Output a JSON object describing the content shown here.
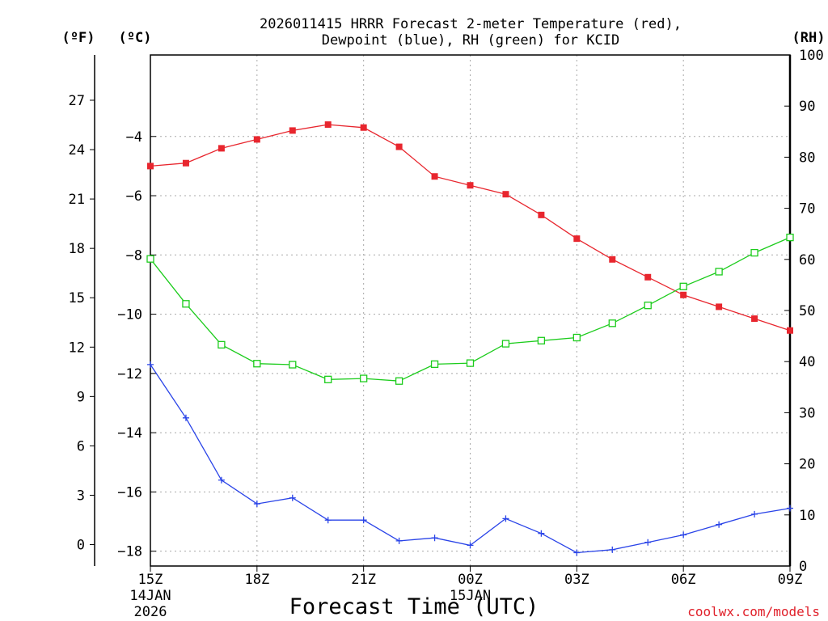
{
  "chart_data": {
    "type": "line",
    "title_line1": "2026011415 HRRR Forecast 2-meter Temperature (red),",
    "title_line2": "Dewpoint (blue), RH (green) for KCID",
    "unit_f": "(ºF)",
    "unit_c": "(ºC)",
    "unit_rh": "(RH)",
    "xlabel": "Forecast Time (UTC)",
    "credit": "coolwx.com/models",
    "celsius_axis": {
      "ylim": [
        -18.5,
        -1.25
      ],
      "ticks": [
        -4,
        -6,
        -8,
        -10,
        -12,
        -14,
        -16,
        -18
      ],
      "tick_labels": [
        "−4",
        "−6",
        "−8",
        "−10",
        "−12",
        "−14",
        "−16",
        "−18"
      ]
    },
    "fahrenheit_axis": {
      "ylim": [
        -1.3,
        29.75
      ],
      "ticks": [
        27,
        24,
        21,
        18,
        15,
        12,
        9,
        6,
        3,
        0
      ],
      "tick_labels": [
        "27",
        "24",
        "21",
        "18",
        "15",
        "12",
        "9",
        "6",
        "3",
        "0"
      ]
    },
    "rh_axis": {
      "ylim": [
        0,
        100
      ],
      "ticks": [
        100,
        90,
        80,
        70,
        60,
        50,
        40,
        30,
        20,
        10,
        0
      ],
      "tick_labels": [
        "100",
        "90",
        "80",
        "70",
        "60",
        "50",
        "40",
        "30",
        "20",
        "10",
        "0"
      ]
    },
    "x_ticks": [
      {
        "hour": 0,
        "label": "15Z",
        "date": "14JAN",
        "year": "2026"
      },
      {
        "hour": 3,
        "label": "18Z"
      },
      {
        "hour": 6,
        "label": "21Z"
      },
      {
        "hour": 9,
        "label": "00Z",
        "date": "15JAN"
      },
      {
        "hour": 12,
        "label": "03Z"
      },
      {
        "hour": 15,
        "label": "06Z"
      },
      {
        "hour": 18,
        "label": "09Z"
      }
    ],
    "x_hours": [
      0,
      1,
      2,
      3,
      4,
      5,
      6,
      7,
      8,
      9,
      10,
      11,
      12,
      13,
      14,
      15,
      16,
      17,
      18
    ],
    "series": [
      {
        "name": "2-meter Temperature",
        "axis": "celsius",
        "color": "#e8262e",
        "marker": "filled-square",
        "values": [
          -5.0,
          -4.9,
          -4.4,
          -4.1,
          -3.8,
          -3.6,
          -3.7,
          -4.35,
          -5.35,
          -5.65,
          -5.95,
          -6.65,
          -7.45,
          -8.15,
          -8.75,
          -9.35,
          -9.75,
          -10.15,
          -10.55
        ]
      },
      {
        "name": "Dewpoint",
        "axis": "celsius",
        "color": "#2a44e8",
        "marker": "plus",
        "values": [
          -11.7,
          -13.5,
          -15.6,
          -16.4,
          -16.2,
          -16.95,
          -16.95,
          -17.65,
          -17.55,
          -17.8,
          -16.9,
          -17.4,
          -18.05,
          -17.95,
          -17.7,
          -17.45,
          -17.1,
          -16.75,
          -16.55
        ]
      },
      {
        "name": "RH",
        "axis": "rh",
        "color": "#1ccc1c",
        "marker": "open-square",
        "values": [
          60.1,
          51.3,
          43.3,
          39.6,
          39.4,
          36.5,
          36.7,
          36.2,
          39.5,
          39.7,
          43.5,
          44.1,
          44.7,
          47.5,
          51.0,
          54.7,
          57.6,
          61.3,
          64.3
        ]
      }
    ]
  }
}
